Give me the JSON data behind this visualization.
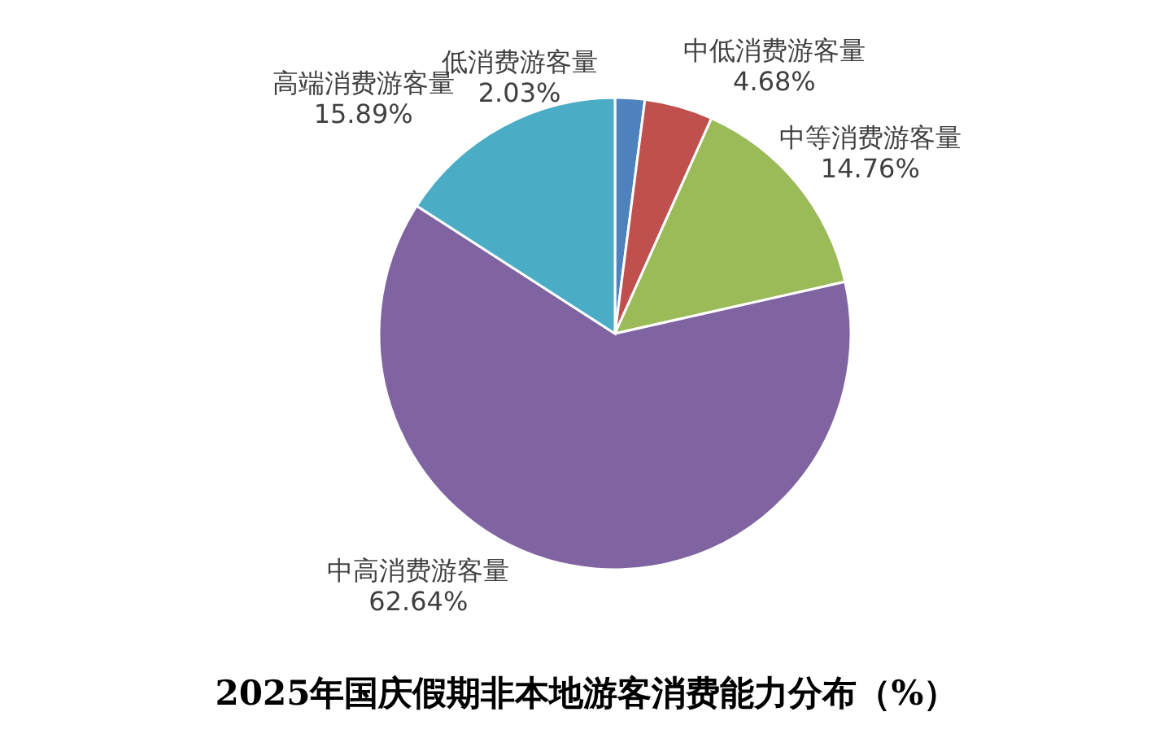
{
  "chart_data": {
    "type": "pie",
    "title": "2025年国庆假期非本地游客消费能力分布（%）",
    "categories": [
      "低消费游客量",
      "中低消费游客量",
      "中等消费游客量",
      "中高消费游客量",
      "高端消费游客量"
    ],
    "values": [
      2.03,
      4.68,
      14.76,
      62.64,
      15.89
    ],
    "colors": [
      "#4f81bd",
      "#c0504d",
      "#9bbb59",
      "#8064a2",
      "#4bacc6"
    ],
    "value_labels": [
      "2.03%",
      "4.68%",
      "14.76%",
      "62.64%",
      "15.89%"
    ],
    "legend": false
  }
}
